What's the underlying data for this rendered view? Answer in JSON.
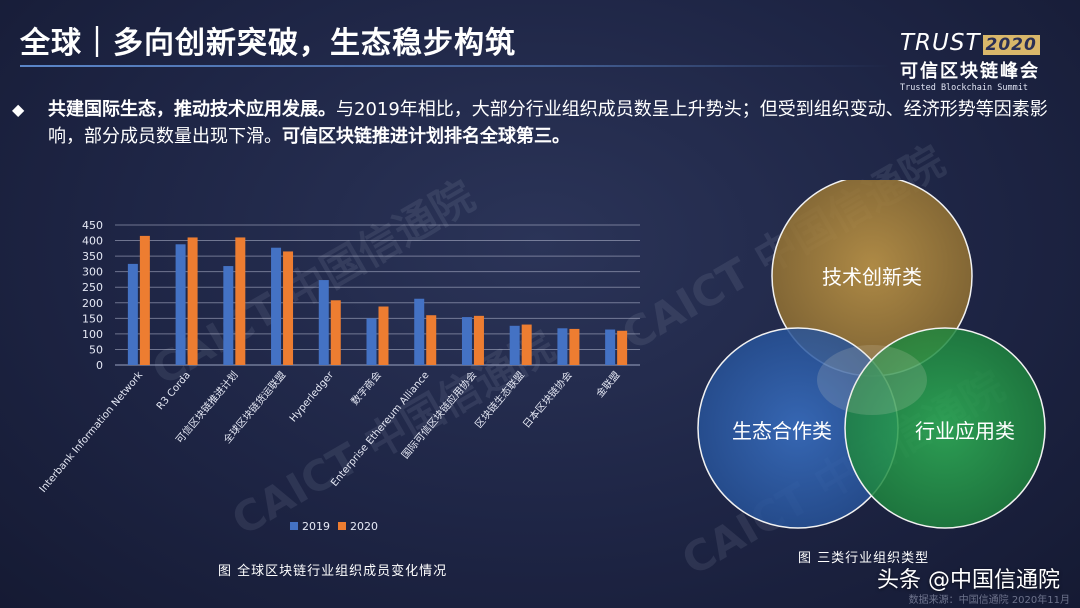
{
  "slide": {
    "title": "全球｜多向创新突破，生态稳步构筑",
    "logo_word": "TRUST",
    "logo_year": "2020",
    "logo_cn": "可信区块链峰会",
    "logo_en": "Trusted Blockchain Summit"
  },
  "body": {
    "bullet": "◆",
    "bold1": "共建国际生态，推动技术应用发展。",
    "normal": "与2019年相比，大部分行业组织成员数呈上升势头；但受到组织变动、经济形势等因素影响，部分成员数量出现下滑。",
    "bold2": "可信区块链推进计划排名全球第三。"
  },
  "watermarks": [
    "CAICT 中国信通院",
    "CAICT 中国信通院",
    "CAICT 中国信通院",
    "CAICT 中国信通院"
  ],
  "chart_data": {
    "type": "bar",
    "categories": [
      "Interbank Information Network",
      "R3 Corda",
      "可信区块链推进计划",
      "全球区块链货运联盟",
      "Hyperledger",
      "数字商会",
      "Enterprise Ethereum Alliance",
      "国际可信区块链应用协会",
      "区块链生态联盟",
      "日本区块链协会",
      "金联盟"
    ],
    "series": [
      {
        "name": "2019",
        "values": [
          325,
          388,
          318,
          377,
          273,
          150,
          213,
          154,
          126,
          118,
          114
        ],
        "color": "#4472c4"
      },
      {
        "name": "2020",
        "values": [
          415,
          410,
          410,
          365,
          208,
          188,
          160,
          158,
          130,
          116,
          110
        ],
        "color": "#ed7d31"
      }
    ],
    "ylim": [
      0,
      450
    ],
    "yticks": [
      0,
      50,
      100,
      150,
      200,
      250,
      300,
      350,
      400,
      450
    ],
    "grid": true,
    "legend": "bottom",
    "caption": "图 全球区块链行业组织成员变化情况"
  },
  "venn": {
    "circles": [
      {
        "label": "技术创新类",
        "color": "#b08a3c"
      },
      {
        "label": "生态合作类",
        "color": "#2f62b0"
      },
      {
        "label": "行业应用类",
        "color": "#259a48"
      }
    ],
    "caption": "图 三类行业组织类型"
  },
  "footer": {
    "text": "头条 @中国信通院",
    "source": "数据来源：中国信通院 2020年11月"
  }
}
